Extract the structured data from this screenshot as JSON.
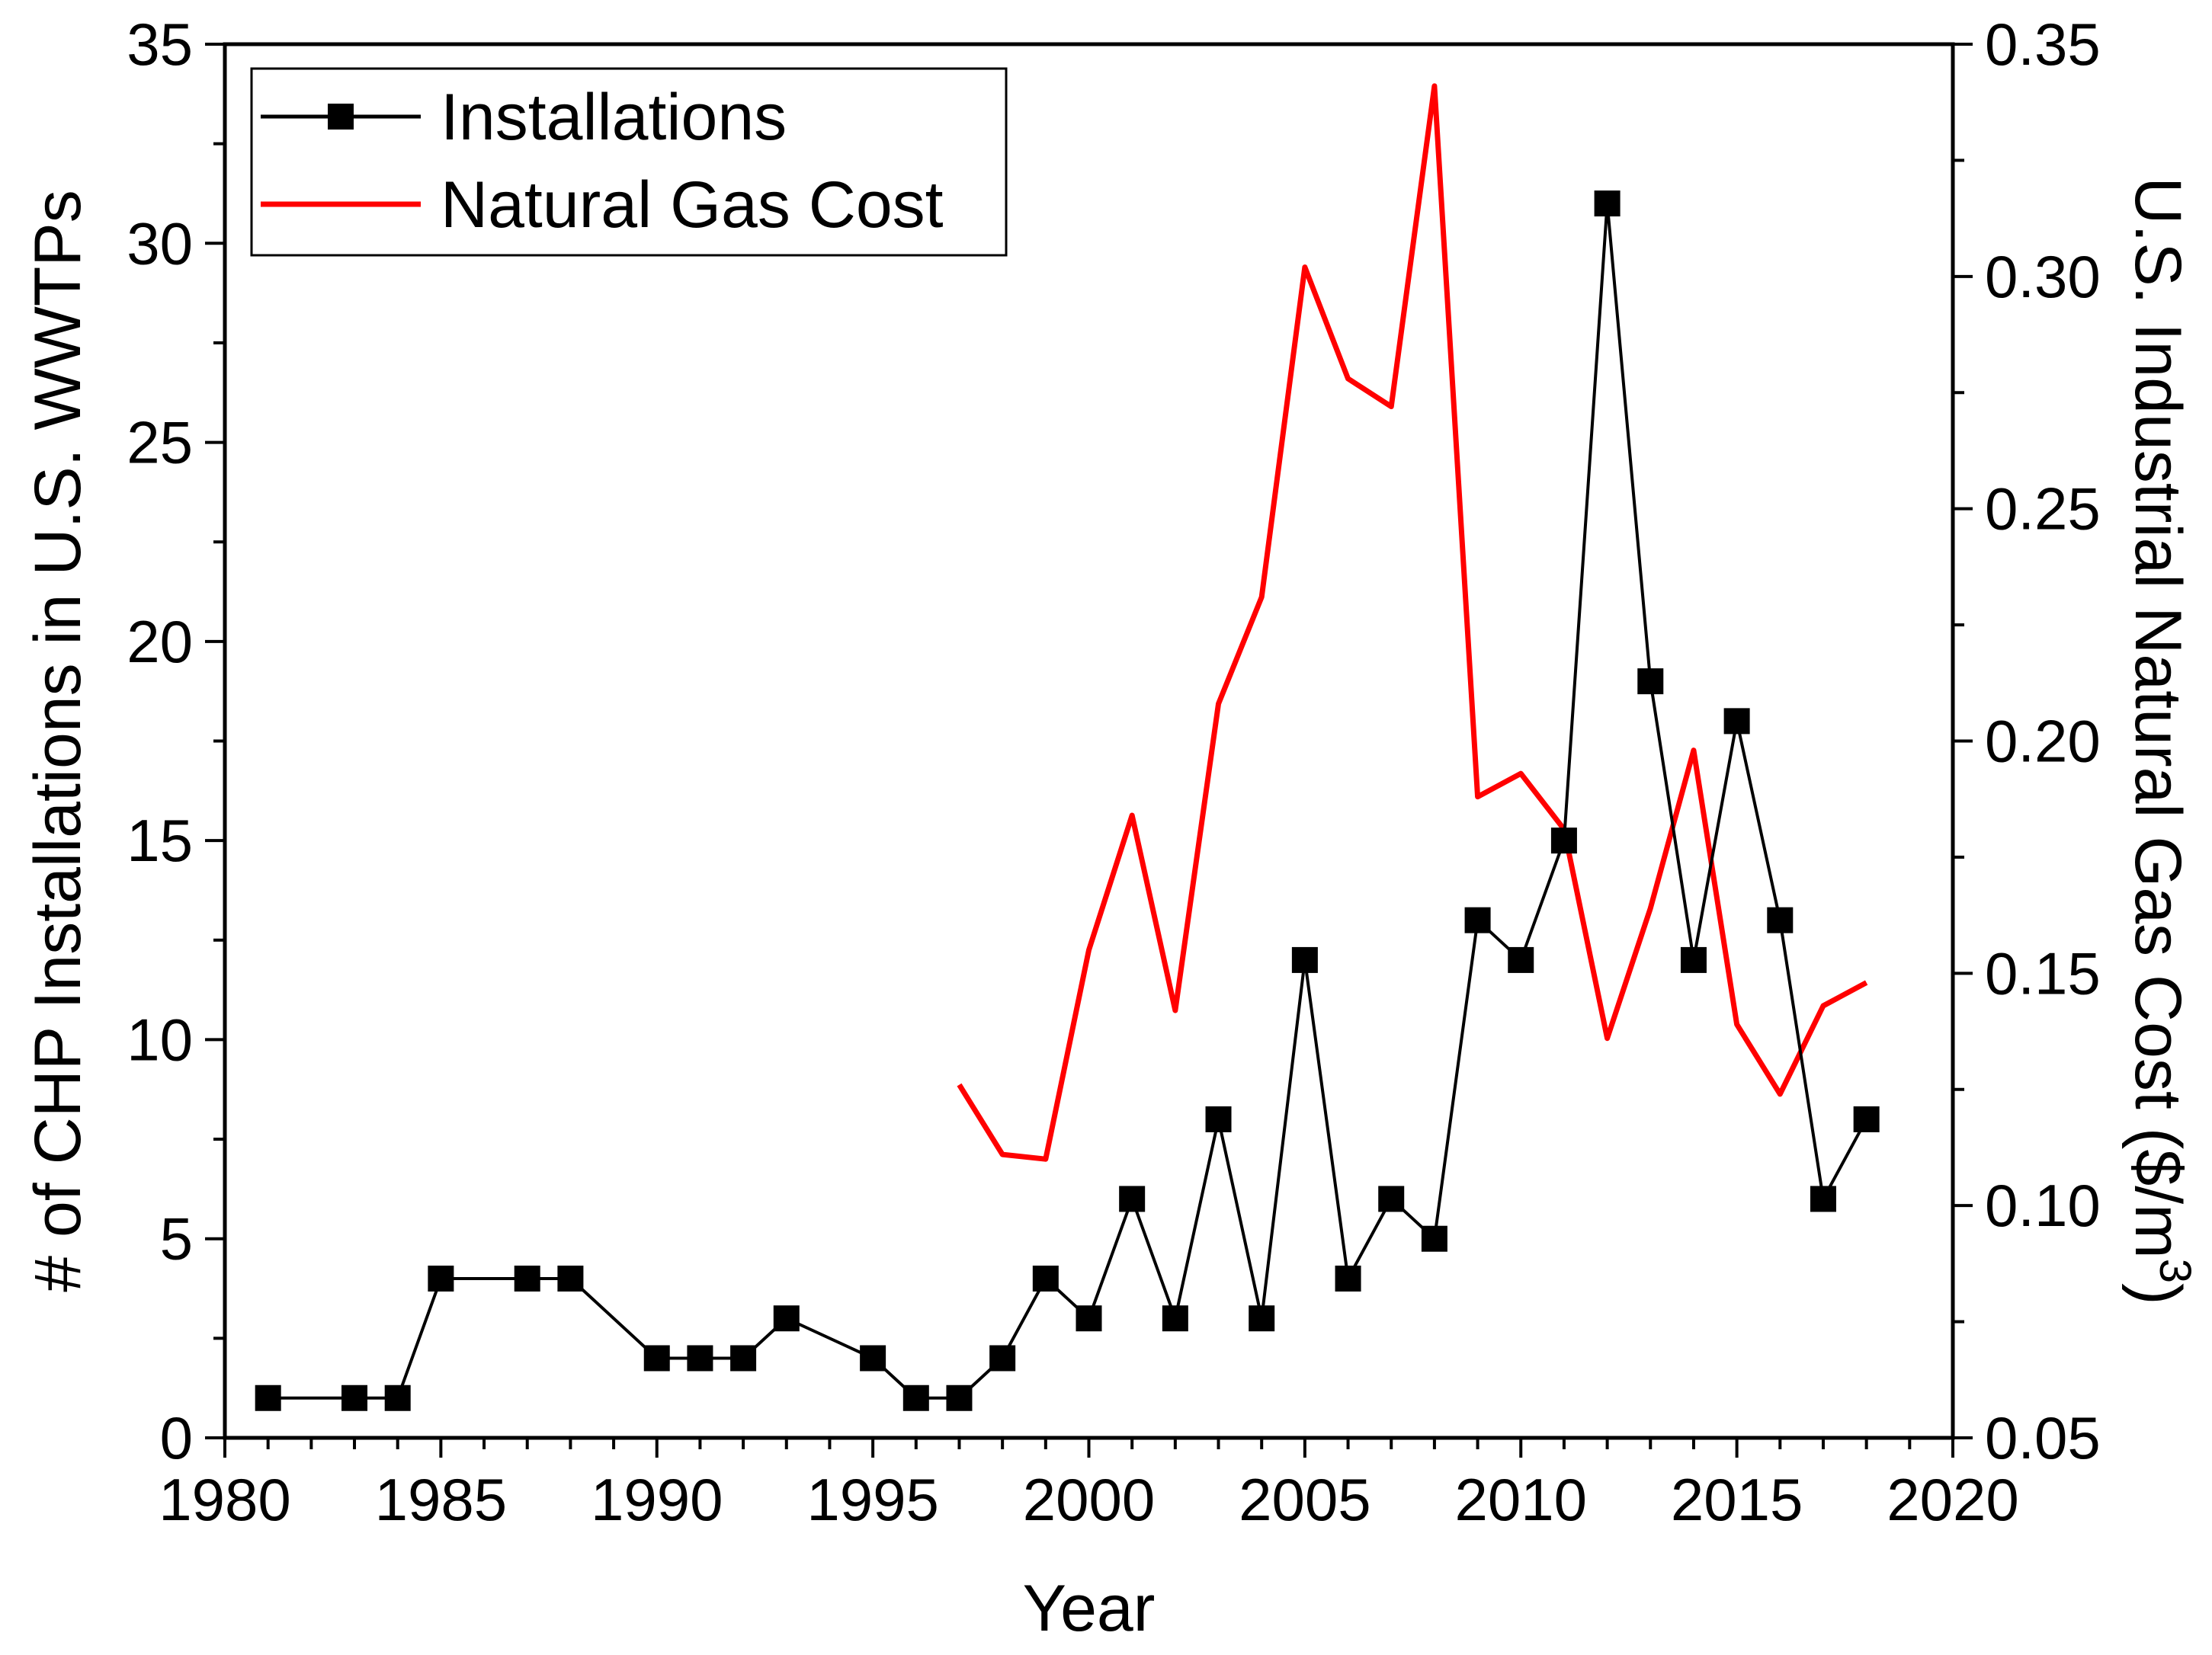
{
  "chart_data": {
    "type": "line",
    "title": "",
    "xlabel": "Year",
    "ylabel_left": "# of CHP Installations in U.S. WWTPs",
    "ylabel_right_main": "U.S. Industrial Natural Gas Cost ($/m",
    "ylabel_right_sup": "3",
    "ylabel_right_close": ")",
    "xlim": [
      1980,
      2020
    ],
    "ylim_left": [
      0,
      35
    ],
    "ylim_right": [
      0.05,
      0.35
    ],
    "x_ticks": [
      1980,
      1985,
      1990,
      1995,
      2000,
      2005,
      2010,
      2015,
      2020
    ],
    "x_tick_labels": [
      "1980",
      "1985",
      "1990",
      "1995",
      "2000",
      "2005",
      "2010",
      "2015",
      "2020"
    ],
    "y_left_ticks": [
      0,
      5,
      10,
      15,
      20,
      25,
      30,
      35
    ],
    "y_left_tick_labels": [
      "0",
      "5",
      "10",
      "15",
      "20",
      "25",
      "30",
      "35"
    ],
    "y_right_ticks": [
      0.05,
      0.1,
      0.15,
      0.2,
      0.25,
      0.3,
      0.35
    ],
    "y_right_tick_labels": [
      "0.05",
      "0.10",
      "0.15",
      "0.20",
      "0.25",
      "0.30",
      "0.35"
    ],
    "legend_position": "top-left",
    "series": [
      {
        "name": "Installations",
        "axis": "left",
        "color": "#000000",
        "marker": "square",
        "x": [
          1981,
          1983,
          1984,
          1985,
          1987,
          1988,
          1990,
          1991,
          1992,
          1993,
          1995,
          1996,
          1997,
          1998,
          1999,
          2000,
          2001,
          2002,
          2003,
          2004,
          2005,
          2006,
          2007,
          2008,
          2009,
          2010,
          2011,
          2012,
          2013,
          2014,
          2015,
          2016,
          2017,
          2018
        ],
        "values": [
          1,
          1,
          1,
          4,
          4,
          4,
          2,
          2,
          2,
          3,
          2,
          1,
          1,
          2,
          4,
          3,
          6,
          3,
          8,
          3,
          12,
          4,
          6,
          5,
          13,
          12,
          15,
          31,
          19,
          12,
          18,
          13,
          6,
          8
        ]
      },
      {
        "name": "Natural Gas Cost",
        "axis": "right",
        "color": "#ff0000",
        "marker": "none",
        "x": [
          1997,
          1998,
          1999,
          2000,
          2001,
          2002,
          2003,
          2004,
          2005,
          2006,
          2007,
          2008,
          2009,
          2010,
          2011,
          2012,
          2013,
          2014,
          2015,
          2016,
          2017,
          2018
        ],
        "values": [
          0.126,
          0.111,
          0.11,
          0.155,
          0.184,
          0.142,
          0.208,
          0.231,
          0.302,
          0.278,
          0.272,
          0.341,
          0.188,
          0.193,
          0.181,
          0.136,
          0.164,
          0.198,
          0.139,
          0.124,
          0.143,
          0.148
        ]
      }
    ]
  }
}
